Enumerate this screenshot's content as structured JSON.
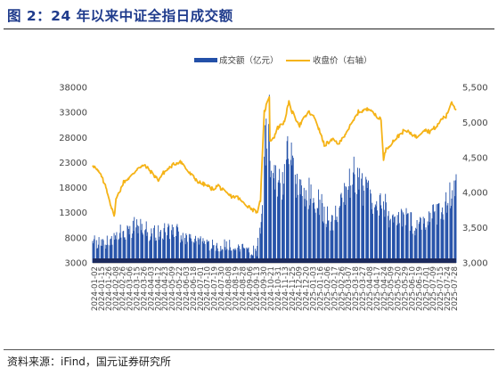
{
  "figure": {
    "title": "图 2：24 年以来中证全指日成交额",
    "source": "资料来源：iFind，国元证券研究所"
  },
  "colors": {
    "bar": "#2350a8",
    "line": "#f5b317",
    "title": "#1f3b8c"
  },
  "chart_data": {
    "type": "bar+line",
    "title": "",
    "legend_position": "top",
    "grid": false,
    "y_left": {
      "ticks": [
        "38000",
        "33000",
        "28000",
        "23000",
        "18000",
        "13000",
        "8000",
        "3000"
      ],
      "range": [
        3000,
        38000
      ]
    },
    "y_right": {
      "ticks": [
        "5,500",
        "5,000",
        "4,500",
        "4,000",
        "3,500",
        "3,000"
      ],
      "range": [
        3000,
        5500
      ]
    },
    "x_range": [
      "2024-01-02",
      "2025-07-31"
    ],
    "x_tick_labels": [
      "2024-01-02",
      "2024-01-15",
      "2024-01-26",
      "2024-02-08",
      "2024-02-26",
      "2024-03-06",
      "2024-03-15",
      "2024-03-26",
      "2024-04-03",
      "2024-04-12",
      "2024-04-23",
      "2024-05-09",
      "2024-05-22",
      "2024-06-03",
      "2024-06-18",
      "2024-07-01",
      "2024-07-10",
      "2024-07-19",
      "2024-07-30",
      "2024-08-08",
      "2024-08-19",
      "2024-08-28",
      "2024-09-06",
      "2024-09-13",
      "2024-09-30",
      "2024-10-21",
      "2024-10-31",
      "2024-11-13",
      "2024-11-25",
      "2024-12-09",
      "2024-12-20",
      "2025-01-03",
      "2025-01-16",
      "2025-02-06",
      "2025-02-17",
      "2025-02-26",
      "2025-03-07",
      "2025-03-18",
      "2025-03-27",
      "2025-04-08",
      "2025-04-17",
      "2025-04-24",
      "2025-05-09",
      "2025-05-20",
      "2025-05-29",
      "2025-06-10",
      "2025-06-19",
      "2025-07-01",
      "2025-07-09",
      "2025-07-15",
      "2025-07-24",
      "2025-07-28"
    ],
    "series": [
      {
        "name": "成交额（亿元）",
        "kind": "bar",
        "axis": "left",
        "points": [
          [
            "2024-01-02",
            7700
          ],
          [
            "2024-01-15",
            6900
          ],
          [
            "2024-02-01",
            7600
          ],
          [
            "2024-02-08",
            9600
          ],
          [
            "2024-02-20",
            9800
          ],
          [
            "2024-03-01",
            9500
          ],
          [
            "2024-03-11",
            10700
          ],
          [
            "2024-03-21",
            9800
          ],
          [
            "2024-04-01",
            9400
          ],
          [
            "2024-04-15",
            9200
          ],
          [
            "2024-05-06",
            9700
          ],
          [
            "2024-05-20",
            9000
          ],
          [
            "2024-06-03",
            7800
          ],
          [
            "2024-06-17",
            7100
          ],
          [
            "2024-07-01",
            6900
          ],
          [
            "2024-07-15",
            6600
          ],
          [
            "2024-08-01",
            6900
          ],
          [
            "2024-08-15",
            5900
          ],
          [
            "2024-09-02",
            5800
          ],
          [
            "2024-09-18",
            5400
          ],
          [
            "2024-09-24",
            10500
          ],
          [
            "2024-09-27",
            14000
          ],
          [
            "2024-09-30",
            26000
          ],
          [
            "2024-10-08",
            34500
          ],
          [
            "2024-10-09",
            24000
          ],
          [
            "2024-10-15",
            20000
          ],
          [
            "2024-10-22",
            19000
          ],
          [
            "2024-11-01",
            20000
          ],
          [
            "2024-11-08",
            26500
          ],
          [
            "2024-11-15",
            20500
          ],
          [
            "2024-11-25",
            18000
          ],
          [
            "2024-12-05",
            17500
          ],
          [
            "2024-12-16",
            16500
          ],
          [
            "2024-12-25",
            16000
          ],
          [
            "2025-01-06",
            13000
          ],
          [
            "2025-01-16",
            11500
          ],
          [
            "2025-02-06",
            17500
          ],
          [
            "2025-02-17",
            21000
          ],
          [
            "2025-02-25",
            19000
          ],
          [
            "2025-03-07",
            18000
          ],
          [
            "2025-03-18",
            17000
          ],
          [
            "2025-03-28",
            13000
          ],
          [
            "2025-04-07",
            15800
          ],
          [
            "2025-04-15",
            12500
          ],
          [
            "2025-04-24",
            11000
          ],
          [
            "2025-05-09",
            12500
          ],
          [
            "2025-05-20",
            11500
          ],
          [
            "2025-05-29",
            10500
          ],
          [
            "2025-06-10",
            12000
          ],
          [
            "2025-06-19",
            12000
          ],
          [
            "2025-07-01",
            13500
          ],
          [
            "2025-07-09",
            14500
          ],
          [
            "2025-07-15",
            15000
          ],
          [
            "2025-07-24",
            18000
          ],
          [
            "2025-07-31",
            19500
          ]
        ]
      },
      {
        "name": "收盘价（右轴）",
        "kind": "line",
        "axis": "right",
        "points": [
          [
            "2024-01-02",
            4400
          ],
          [
            "2024-01-15",
            4250
          ],
          [
            "2024-01-24",
            4050
          ],
          [
            "2024-02-05",
            3650
          ],
          [
            "2024-02-08",
            3900
          ],
          [
            "2024-02-20",
            4150
          ],
          [
            "2024-03-05",
            4250
          ],
          [
            "2024-03-15",
            4370
          ],
          [
            "2024-03-25",
            4380
          ],
          [
            "2024-04-03",
            4300
          ],
          [
            "2024-04-15",
            4180
          ],
          [
            "2024-04-23",
            4280
          ],
          [
            "2024-05-09",
            4400
          ],
          [
            "2024-05-20",
            4450
          ],
          [
            "2024-06-03",
            4280
          ],
          [
            "2024-06-18",
            4150
          ],
          [
            "2024-07-01",
            4100
          ],
          [
            "2024-07-10",
            4050
          ],
          [
            "2024-07-19",
            4100
          ],
          [
            "2024-07-30",
            4000
          ],
          [
            "2024-08-08",
            3950
          ],
          [
            "2024-08-19",
            3930
          ],
          [
            "2024-08-28",
            3850
          ],
          [
            "2024-09-06",
            3800
          ],
          [
            "2024-09-13",
            3750
          ],
          [
            "2024-09-20",
            3730
          ],
          [
            "2024-09-24",
            3900
          ],
          [
            "2024-09-30",
            5150
          ],
          [
            "2024-10-08",
            5380
          ],
          [
            "2024-10-09",
            4750
          ],
          [
            "2024-10-15",
            4780
          ],
          [
            "2024-10-21",
            4920
          ],
          [
            "2024-10-31",
            5000
          ],
          [
            "2024-11-08",
            5280
          ],
          [
            "2024-11-13",
            5150
          ],
          [
            "2024-11-25",
            4960
          ],
          [
            "2024-12-09",
            5150
          ],
          [
            "2024-12-20",
            5050
          ],
          [
            "2025-01-03",
            4680
          ],
          [
            "2025-01-16",
            4750
          ],
          [
            "2025-01-27",
            4700
          ],
          [
            "2025-02-06",
            4850
          ],
          [
            "2025-02-17",
            5000
          ],
          [
            "2025-02-26",
            5150
          ],
          [
            "2025-03-07",
            5170
          ],
          [
            "2025-03-18",
            5200
          ],
          [
            "2025-03-27",
            5070
          ],
          [
            "2025-04-03",
            5060
          ],
          [
            "2025-04-07",
            4450
          ],
          [
            "2025-04-10",
            4600
          ],
          [
            "2025-04-17",
            4680
          ],
          [
            "2025-04-24",
            4750
          ],
          [
            "2025-05-09",
            4880
          ],
          [
            "2025-05-20",
            4850
          ],
          [
            "2025-05-29",
            4790
          ],
          [
            "2025-06-10",
            4900
          ],
          [
            "2025-06-19",
            4870
          ],
          [
            "2025-07-01",
            4950
          ],
          [
            "2025-07-09",
            5060
          ],
          [
            "2025-07-15",
            5080
          ],
          [
            "2025-07-24",
            5300
          ],
          [
            "2025-07-28",
            5220
          ],
          [
            "2025-07-31",
            5190
          ]
        ]
      }
    ]
  }
}
